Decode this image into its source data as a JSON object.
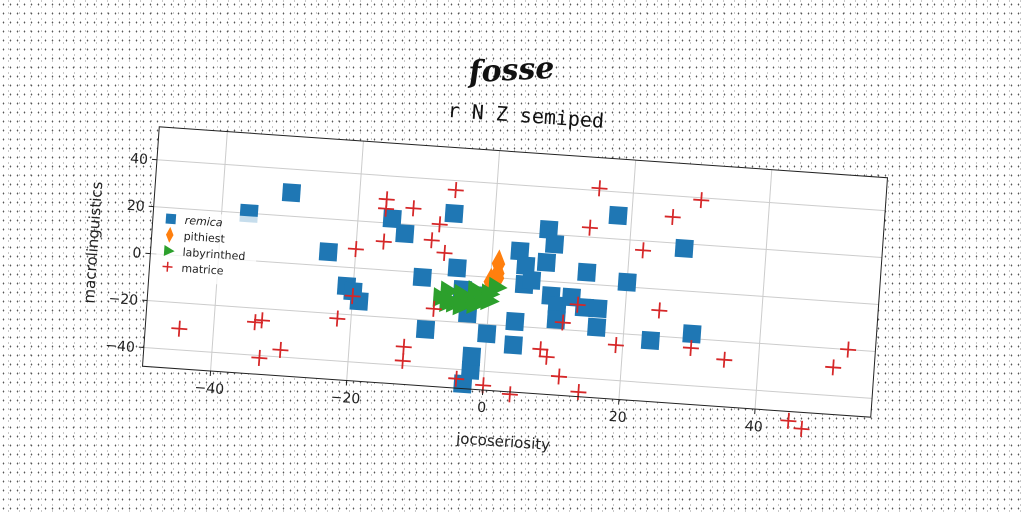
{
  "chart_data": {
    "type": "scatter",
    "suptitle": "fosse",
    "title": "r N Z semiped",
    "xlabel": "jocoseriosity",
    "ylabel": "macrolinguistics",
    "xlim": [
      -50,
      57
    ],
    "ylim": [
      -48,
      54
    ],
    "xticks": [
      -40,
      -20,
      0,
      20,
      40
    ],
    "yticks": [
      -40,
      -20,
      0,
      20,
      40
    ],
    "xtick_labels": [
      "−40",
      "−20",
      "0",
      "20",
      "40"
    ],
    "ytick_labels": [
      "−40",
      "−20",
      "0",
      "20",
      "40"
    ],
    "grid": true,
    "legend_position": "center-left",
    "series": [
      {
        "name": "remica",
        "marker": "square",
        "color": "#1f77b4",
        "points": [
          [
            -30,
            30
          ],
          [
            -36,
            20
          ],
          [
            -24,
            6
          ],
          [
            -21,
            -8
          ],
          [
            -20,
            -10
          ],
          [
            -19,
            -14
          ],
          [
            -15,
            22
          ],
          [
            -13,
            16
          ],
          [
            -10,
            -2
          ],
          [
            -9,
            -24
          ],
          [
            -6,
            26
          ],
          [
            -5,
            3
          ],
          [
            -4,
            -6
          ],
          [
            -3,
            -16
          ],
          [
            -2,
            -8
          ],
          [
            -3,
            -46
          ],
          [
            -2,
            -40
          ],
          [
            -2,
            -34
          ],
          [
            0,
            -24
          ],
          [
            4,
            12
          ],
          [
            5,
            6
          ],
          [
            5,
            -2
          ],
          [
            6,
            0
          ],
          [
            4,
            -18
          ],
          [
            4,
            -28
          ],
          [
            8,
            22
          ],
          [
            9,
            16
          ],
          [
            8,
            8
          ],
          [
            9,
            -6
          ],
          [
            10,
            -10
          ],
          [
            10,
            -16
          ],
          [
            12,
            -6
          ],
          [
            14,
            5
          ],
          [
            14,
            -10
          ],
          [
            16,
            -10
          ],
          [
            16,
            -18
          ],
          [
            18,
            30
          ],
          [
            20,
            2
          ],
          [
            24,
            -22
          ],
          [
            28,
            18
          ],
          [
            30,
            -18
          ]
        ]
      },
      {
        "name": "pithiest",
        "marker": "thin-diamond",
        "color": "#ff7f0e",
        "points": [
          [
            1,
            6
          ],
          [
            1,
            2
          ],
          [
            0,
            -2
          ],
          [
            1,
            0
          ]
        ]
      },
      {
        "name": "labyrinthed",
        "marker": "triangle-right",
        "color": "#2ca02c",
        "points": [
          [
            -7,
            -10
          ],
          [
            -6,
            -7
          ],
          [
            -5,
            -12
          ],
          [
            -4,
            -8
          ],
          [
            -3,
            -10
          ],
          [
            -2,
            -6
          ],
          [
            -1,
            -9
          ],
          [
            0,
            -7
          ],
          [
            -4,
            -13
          ],
          [
            -2,
            -12
          ],
          [
            1,
            -4
          ],
          [
            -6,
            -12
          ],
          [
            0,
            -10
          ]
        ]
      },
      {
        "name": "matrice",
        "marker": "plus",
        "color": "#d62728",
        "points": [
          [
            -45,
            -31
          ],
          [
            -34,
            -26
          ],
          [
            -33,
            -25
          ],
          [
            -33,
            -41
          ],
          [
            -30,
            -37
          ],
          [
            -20,
            8
          ],
          [
            -20,
            -12
          ],
          [
            -22,
            -22
          ],
          [
            -16,
            30
          ],
          [
            -16,
            26
          ],
          [
            -16,
            12
          ],
          [
            -12,
            27
          ],
          [
            -12,
            -32
          ],
          [
            -12,
            -38
          ],
          [
            -8,
            21
          ],
          [
            -9,
            14
          ],
          [
            -7,
            9
          ],
          [
            -6,
            36
          ],
          [
            -8,
            -15
          ],
          [
            -4,
            -44
          ],
          [
            0,
            -46
          ],
          [
            4,
            -49
          ],
          [
            8,
            -29
          ],
          [
            9,
            -32
          ],
          [
            11,
            -40
          ],
          [
            11,
            -17
          ],
          [
            13,
            -9
          ],
          [
            14,
            -46
          ],
          [
            14,
            24
          ],
          [
            15,
            41
          ],
          [
            19,
            -25
          ],
          [
            22,
            16
          ],
          [
            26,
            31
          ],
          [
            25,
            -9
          ],
          [
            30,
            39
          ],
          [
            30,
            -24
          ],
          [
            35,
            -28
          ],
          [
            45,
            -52
          ],
          [
            47,
            -55
          ],
          [
            51,
            -28
          ],
          [
            53,
            -20
          ]
        ]
      }
    ]
  }
}
